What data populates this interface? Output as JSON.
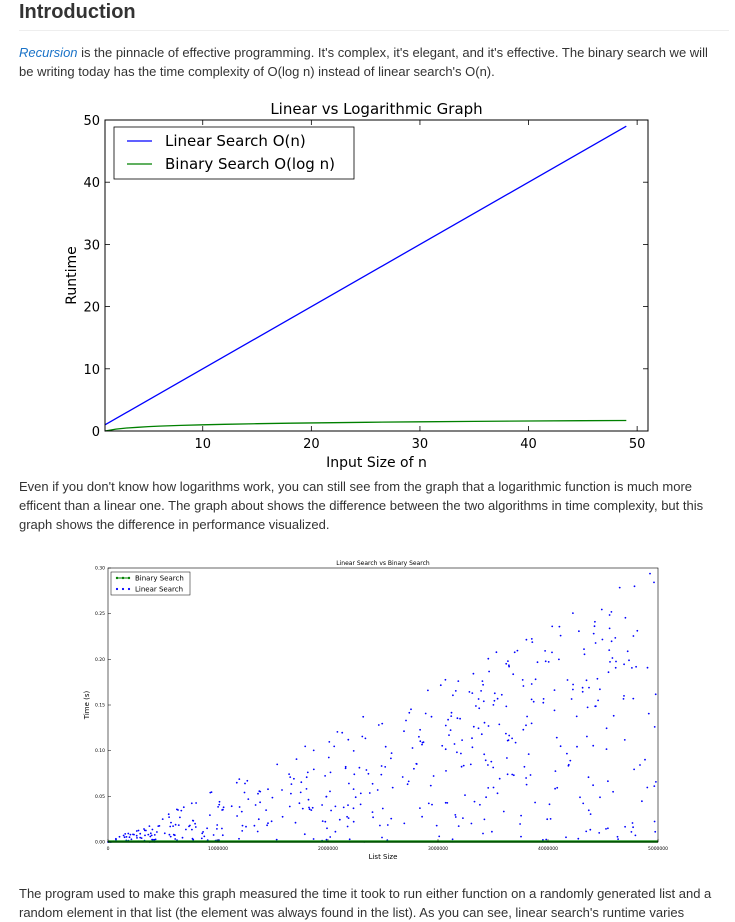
{
  "section": {
    "heading": "Introduction",
    "para1_link": "Recursion",
    "para1_rest": " is the pinnacle of effective programming. It's complex, it's elegant, and it's effective. The binary search we will be writing today has the time complexity of O(log n) instead of linear search's O(n).",
    "para2": "Even if you don't know how logarithms work, you can still see from the graph that a logarithmic function is much more efficent than a linear one. The graph about shows the difference between the two algorithms in time complexity, but this graph shows the difference in performance visualized.",
    "para3": "The program used to make this graph measured the time it took to run either function on a randomly generated list and a random element in that list (the element was always found in the list). As you can see, linear search's runtime varies"
  },
  "chart_data": [
    {
      "type": "line",
      "title": "Linear vs Logarithmic Graph",
      "xlabel": "Input Size of n",
      "ylabel": "Runtime",
      "xlim": [
        1,
        51
      ],
      "ylim": [
        0,
        50
      ],
      "xticks": [
        10,
        20,
        30,
        40,
        50
      ],
      "yticks": [
        0,
        10,
        20,
        30,
        40,
        50
      ],
      "grid": false,
      "legend_position": "top-left",
      "series": [
        {
          "name": "Linear Search O(n)",
          "color": "#0000ff",
          "x": [
            1,
            49
          ],
          "y": [
            1,
            49
          ]
        },
        {
          "name": "Binary Search O(log n)",
          "color": "#008000",
          "x": [
            1,
            2,
            3,
            4,
            5,
            6,
            8,
            10,
            12,
            15,
            18,
            21,
            25,
            30,
            35,
            40,
            45,
            49
          ],
          "y": [
            0,
            0.3,
            0.48,
            0.6,
            0.7,
            0.78,
            0.9,
            1.0,
            1.08,
            1.18,
            1.26,
            1.32,
            1.4,
            1.48,
            1.54,
            1.6,
            1.65,
            1.69
          ]
        }
      ]
    },
    {
      "type": "scatter",
      "title": "Linear Search vs Binary Search",
      "xlabel": "List Size",
      "ylabel": "Time (s)",
      "xlim": [
        0,
        5000000
      ],
      "ylim": [
        0,
        0.3
      ],
      "xticks": [
        0,
        1000000,
        2000000,
        3000000,
        4000000,
        5000000
      ],
      "yticks": [
        0.0,
        0.05,
        0.1,
        0.15,
        0.2,
        0.25,
        0.3
      ],
      "grid": false,
      "legend_position": "top-left",
      "series": [
        {
          "name": "Binary Search",
          "color": "#008000",
          "marker": "line-dot",
          "x": [
            0,
            5000000
          ],
          "y": [
            0.0005,
            0.0005
          ]
        },
        {
          "name": "Linear Search",
          "color": "#0000ff",
          "marker": "dot",
          "approx_max_time_per_size": 6e-08,
          "approx_points": 500
        }
      ]
    }
  ]
}
